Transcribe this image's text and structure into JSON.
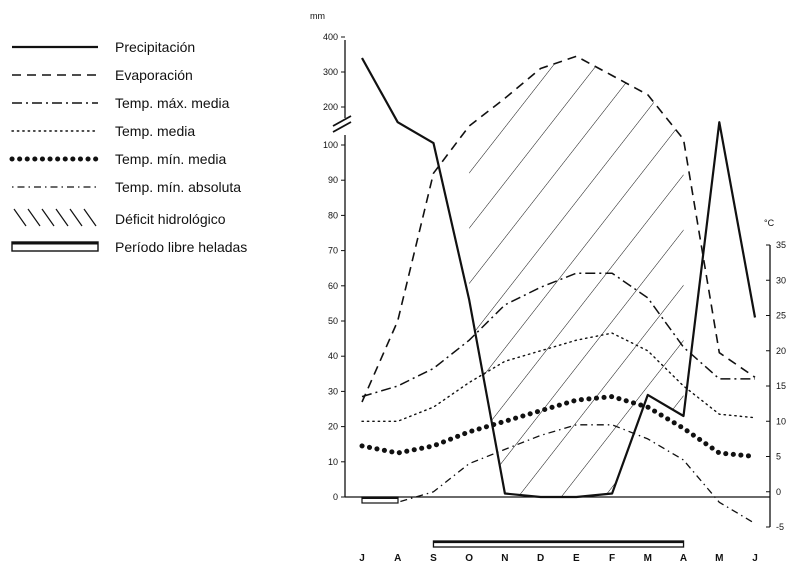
{
  "chart_data": {
    "type": "line",
    "title": "",
    "categories": [
      "J",
      "A",
      "S",
      "O",
      "N",
      "D",
      "E",
      "F",
      "M",
      "A",
      "M",
      "J"
    ],
    "left_axis": {
      "unit": "mm",
      "break_between": [
        100,
        200
      ],
      "ticks_lower": [
        "0",
        "10",
        "20",
        "30",
        "40",
        "50",
        "60",
        "70",
        "80",
        "90",
        "100"
      ],
      "ticks_upper": [
        "200",
        "300",
        "400"
      ],
      "note": "broken axis: 0-100 mm linear, 200-400 mm compressed above break"
    },
    "right_axis": {
      "unit": "°C",
      "range": [
        -5,
        35
      ],
      "ticks": [
        "-5",
        "0",
        "5",
        "10",
        "15",
        "20",
        "25",
        "30",
        "35"
      ]
    },
    "series": [
      {
        "name": "Precipitación",
        "axis": "left",
        "style": "solid",
        "values": [
          340,
          160,
          105,
          56,
          1,
          0,
          0,
          1,
          29,
          23,
          160,
          51
        ]
      },
      {
        "name": "Evaporación",
        "axis": "left",
        "style": "dashed",
        "values": [
          27,
          50,
          92,
          150,
          225,
          310,
          345,
          290,
          235,
          115,
          41,
          34
        ]
      },
      {
        "name": "Temp. máx. media",
        "axis": "right",
        "style": "dashdot",
        "values": [
          13.5,
          15,
          17.5,
          21.5,
          26.5,
          29,
          31,
          31,
          27.5,
          20.5,
          16,
          16
        ]
      },
      {
        "name": "Temp. media",
        "axis": "right",
        "style": "dotted",
        "values": [
          10,
          10,
          12,
          15.5,
          18.5,
          20,
          21.5,
          22.5,
          20,
          15,
          11,
          10.5
        ]
      },
      {
        "name": "Temp. mín. media",
        "axis": "right",
        "style": "bigdots",
        "values": [
          6.5,
          5.5,
          6.5,
          8.5,
          10,
          11.5,
          13,
          13.5,
          12,
          9,
          5.5,
          5
        ]
      },
      {
        "name": "Temp. mín. absoluta",
        "axis": "right",
        "style": "dotdash",
        "values": [
          -1.5,
          -1.5,
          0,
          4,
          6,
          8,
          9.5,
          9.5,
          7.5,
          4.5,
          -1.5,
          -4.5
        ]
      }
    ],
    "deficit_hidrologico": {
      "from": "O",
      "to": "A",
      "label": "Déficit hidrológico"
    },
    "periodo_libre_heladas": {
      "from": "S",
      "to": "A",
      "label": "Período libre heladas"
    }
  },
  "legend": [
    {
      "style": "solid",
      "label": "Precipitación"
    },
    {
      "style": "dashed",
      "label": "Evaporación"
    },
    {
      "style": "dashdot",
      "label": "Temp. máx. media"
    },
    {
      "style": "dotted",
      "label": "Temp. media"
    },
    {
      "style": "bigdots",
      "label": "Temp. mín. media"
    },
    {
      "style": "dotdash",
      "label": "Temp. mín. absoluta"
    },
    {
      "style": "hatch",
      "label": "Déficit hidrológico"
    },
    {
      "style": "bar",
      "label": "Período libre heladas"
    }
  ]
}
